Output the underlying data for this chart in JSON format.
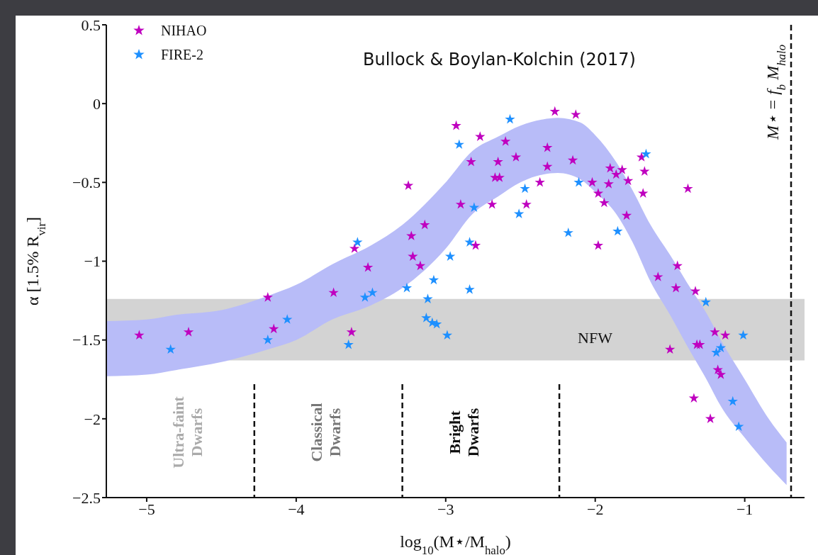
{
  "chart_data": {
    "type": "scatter",
    "xlabel": "log$_{10}$(M⋆/M$_{halo}$)",
    "ylabel": "α [1.5% R$_{vir}$]",
    "xlim": [
      -5.27,
      -0.6
    ],
    "ylim": [
      -2.5,
      0.5
    ],
    "xticks": [
      -5,
      -4,
      -3,
      -2,
      -1
    ],
    "yticks": [
      0.5,
      0,
      -0.5,
      -1,
      -1.5,
      -2,
      -2.5
    ],
    "marker": "star",
    "legend": "top left",
    "series": [
      {
        "name": "NIHAO",
        "color": "#bf00bf",
        "x": [
          -5.05,
          -4.72,
          -4.19,
          -4.15,
          -3.75,
          -3.63,
          -3.61,
          -3.52,
          -3.25,
          -3.23,
          -3.22,
          -3.17,
          -3.14,
          -2.93,
          -2.9,
          -2.83,
          -2.8,
          -2.77,
          -2.69,
          -2.67,
          -2.64,
          -2.65,
          -2.6,
          -2.53,
          -2.46,
          -2.37,
          -2.32,
          -2.32,
          -2.27,
          -2.13,
          -2.15,
          -2.02,
          -1.98,
          -1.98,
          -1.94,
          -1.91,
          -1.9,
          -1.86,
          -1.82,
          -1.79,
          -1.78,
          -1.69,
          -1.68,
          -1.67,
          -1.58,
          -1.5,
          -1.46,
          -1.45,
          -1.38,
          -1.34,
          -1.33,
          -1.32,
          -1.3,
          -1.23,
          -1.2,
          -1.18,
          -1.16,
          -1.13
        ],
        "values": [
          -1.47,
          -1.45,
          -1.23,
          -1.43,
          -1.2,
          -1.45,
          -0.92,
          -1.04,
          -0.52,
          -0.84,
          -0.97,
          -1.03,
          -0.77,
          -0.14,
          -0.64,
          -0.37,
          -0.9,
          -0.21,
          -0.64,
          -0.47,
          -0.47,
          -0.37,
          -0.24,
          -0.34,
          -0.64,
          -0.5,
          -0.28,
          -0.4,
          -0.05,
          -0.07,
          -0.36,
          -0.5,
          -0.57,
          -0.9,
          -0.63,
          -0.51,
          -0.41,
          -0.45,
          -0.42,
          -0.71,
          -0.49,
          -0.34,
          -0.57,
          -0.43,
          -1.1,
          -1.56,
          -1.17,
          -1.03,
          -0.54,
          -1.87,
          -1.19,
          -1.53,
          -1.53,
          -2.0,
          -1.45,
          -1.69,
          -1.72,
          -1.47
        ]
      },
      {
        "name": "FIRE-2",
        "color": "#1e90ff",
        "x": [
          -4.84,
          -4.19,
          -4.06,
          -3.65,
          -3.59,
          -3.54,
          -3.49,
          -3.26,
          -3.13,
          -3.12,
          -3.09,
          -3.08,
          -3.06,
          -2.99,
          -2.97,
          -2.91,
          -2.84,
          -2.84,
          -2.81,
          -2.57,
          -2.51,
          -2.47,
          -2.18,
          -2.11,
          -1.85,
          -1.66,
          -1.26,
          -1.19,
          -1.16,
          -1.08,
          -1.04,
          -1.01
        ],
        "values": [
          -1.56,
          -1.5,
          -1.37,
          -1.53,
          -0.88,
          -1.23,
          -1.2,
          -1.17,
          -1.36,
          -1.24,
          -1.39,
          -1.12,
          -1.4,
          -1.47,
          -0.97,
          -0.26,
          -0.88,
          -1.18,
          -0.66,
          -0.1,
          -0.7,
          -0.54,
          -0.82,
          -0.5,
          -0.81,
          -0.32,
          -1.26,
          -1.58,
          -1.55,
          -1.89,
          -2.05,
          -1.47
        ]
      },
      {
        "type": "line",
        "color": "#b8bcf8",
        "x": [
          -5.27,
          -5,
          -4.8,
          -4.5,
          -4.19,
          -4,
          -3.76,
          -3.5,
          -3.29,
          -3,
          -2.82,
          -2.65,
          -2.5,
          -2.35,
          -2.25,
          -2.1,
          -2,
          -1.86,
          -1.75,
          -1.63,
          -1.5,
          -1.39,
          -1.25,
          -1.16,
          -1,
          -0.84,
          -0.72
        ],
        "lower": [
          -1.73,
          -1.72,
          -1.69,
          -1.64,
          -1.56,
          -1.5,
          -1.37,
          -1.28,
          -1.17,
          -0.92,
          -0.7,
          -0.59,
          -0.5,
          -0.45,
          -0.44,
          -0.48,
          -0.56,
          -0.7,
          -0.88,
          -1.13,
          -1.34,
          -1.53,
          -1.76,
          -1.92,
          -2.12,
          -2.3,
          -2.42
        ],
        "values": [
          null,
          null,
          null,
          null,
          null,
          null,
          null,
          null,
          null,
          null,
          null,
          null,
          null,
          null,
          null,
          null,
          null,
          null,
          null,
          null,
          null,
          null,
          null,
          null,
          null,
          null,
          null
        ],
        "upper": [
          -1.38,
          -1.37,
          -1.34,
          -1.31,
          -1.22,
          -1.15,
          -1.02,
          -0.9,
          -0.77,
          -0.5,
          -0.3,
          -0.21,
          -0.14,
          -0.1,
          -0.09,
          -0.12,
          -0.2,
          -0.37,
          -0.55,
          -0.77,
          -0.96,
          -1.13,
          -1.34,
          -1.5,
          -1.75,
          -2.0,
          -2.15
        ]
      }
    ],
    "bands": [
      {
        "axis": "y",
        "from": -1.63,
        "to": -1.24,
        "label": "NFW",
        "color": "#d3d3d3"
      }
    ],
    "ref_lines": [
      {
        "axis": "x",
        "value": -4.28,
        "label": null,
        "line_style": "dashed"
      },
      {
        "axis": "x",
        "value": -3.29,
        "label": null,
        "line_style": "dashed"
      },
      {
        "axis": "x",
        "value": -2.24,
        "label": null,
        "line_style": "dashed"
      },
      {
        "axis": "x",
        "value": -0.69,
        "label": "M⋆ = f$_{b}$ M$_{halo}$",
        "line_style": "dashed"
      }
    ],
    "annotations": [
      "Bullock & Boylan-Kolchin (2017)",
      "Ultra-faint Dwarfs",
      "Classical Dwarfs",
      "Bright Dwarfs"
    ]
  }
}
